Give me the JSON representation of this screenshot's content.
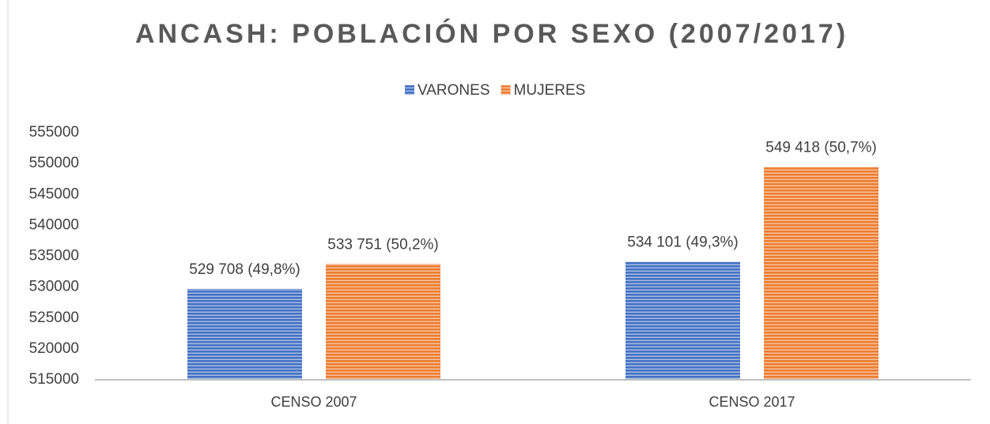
{
  "chart_data": {
    "type": "bar",
    "title": "ANCASH: POBLACIÓN POR SEXO (2007/2017)",
    "categories": [
      "CENSO 2007",
      "CENSO 2017"
    ],
    "series": [
      {
        "name": "VARONES",
        "color": "#4472c4",
        "values": [
          529708,
          534101
        ],
        "value_labels": [
          "529 708 (49,8%)",
          "534 101 (49,3%)"
        ]
      },
      {
        "name": "MUJERES",
        "color": "#ed7d31",
        "values": [
          533751,
          549418
        ],
        "value_labels": [
          "533 751 (50,2%)",
          "549 418 (50,7%)"
        ]
      }
    ],
    "ylim": [
      515000,
      555000
    ],
    "yticks": [
      515000,
      520000,
      525000,
      530000,
      535000,
      540000,
      545000,
      550000,
      555000
    ],
    "legend": "top",
    "grid": false
  }
}
